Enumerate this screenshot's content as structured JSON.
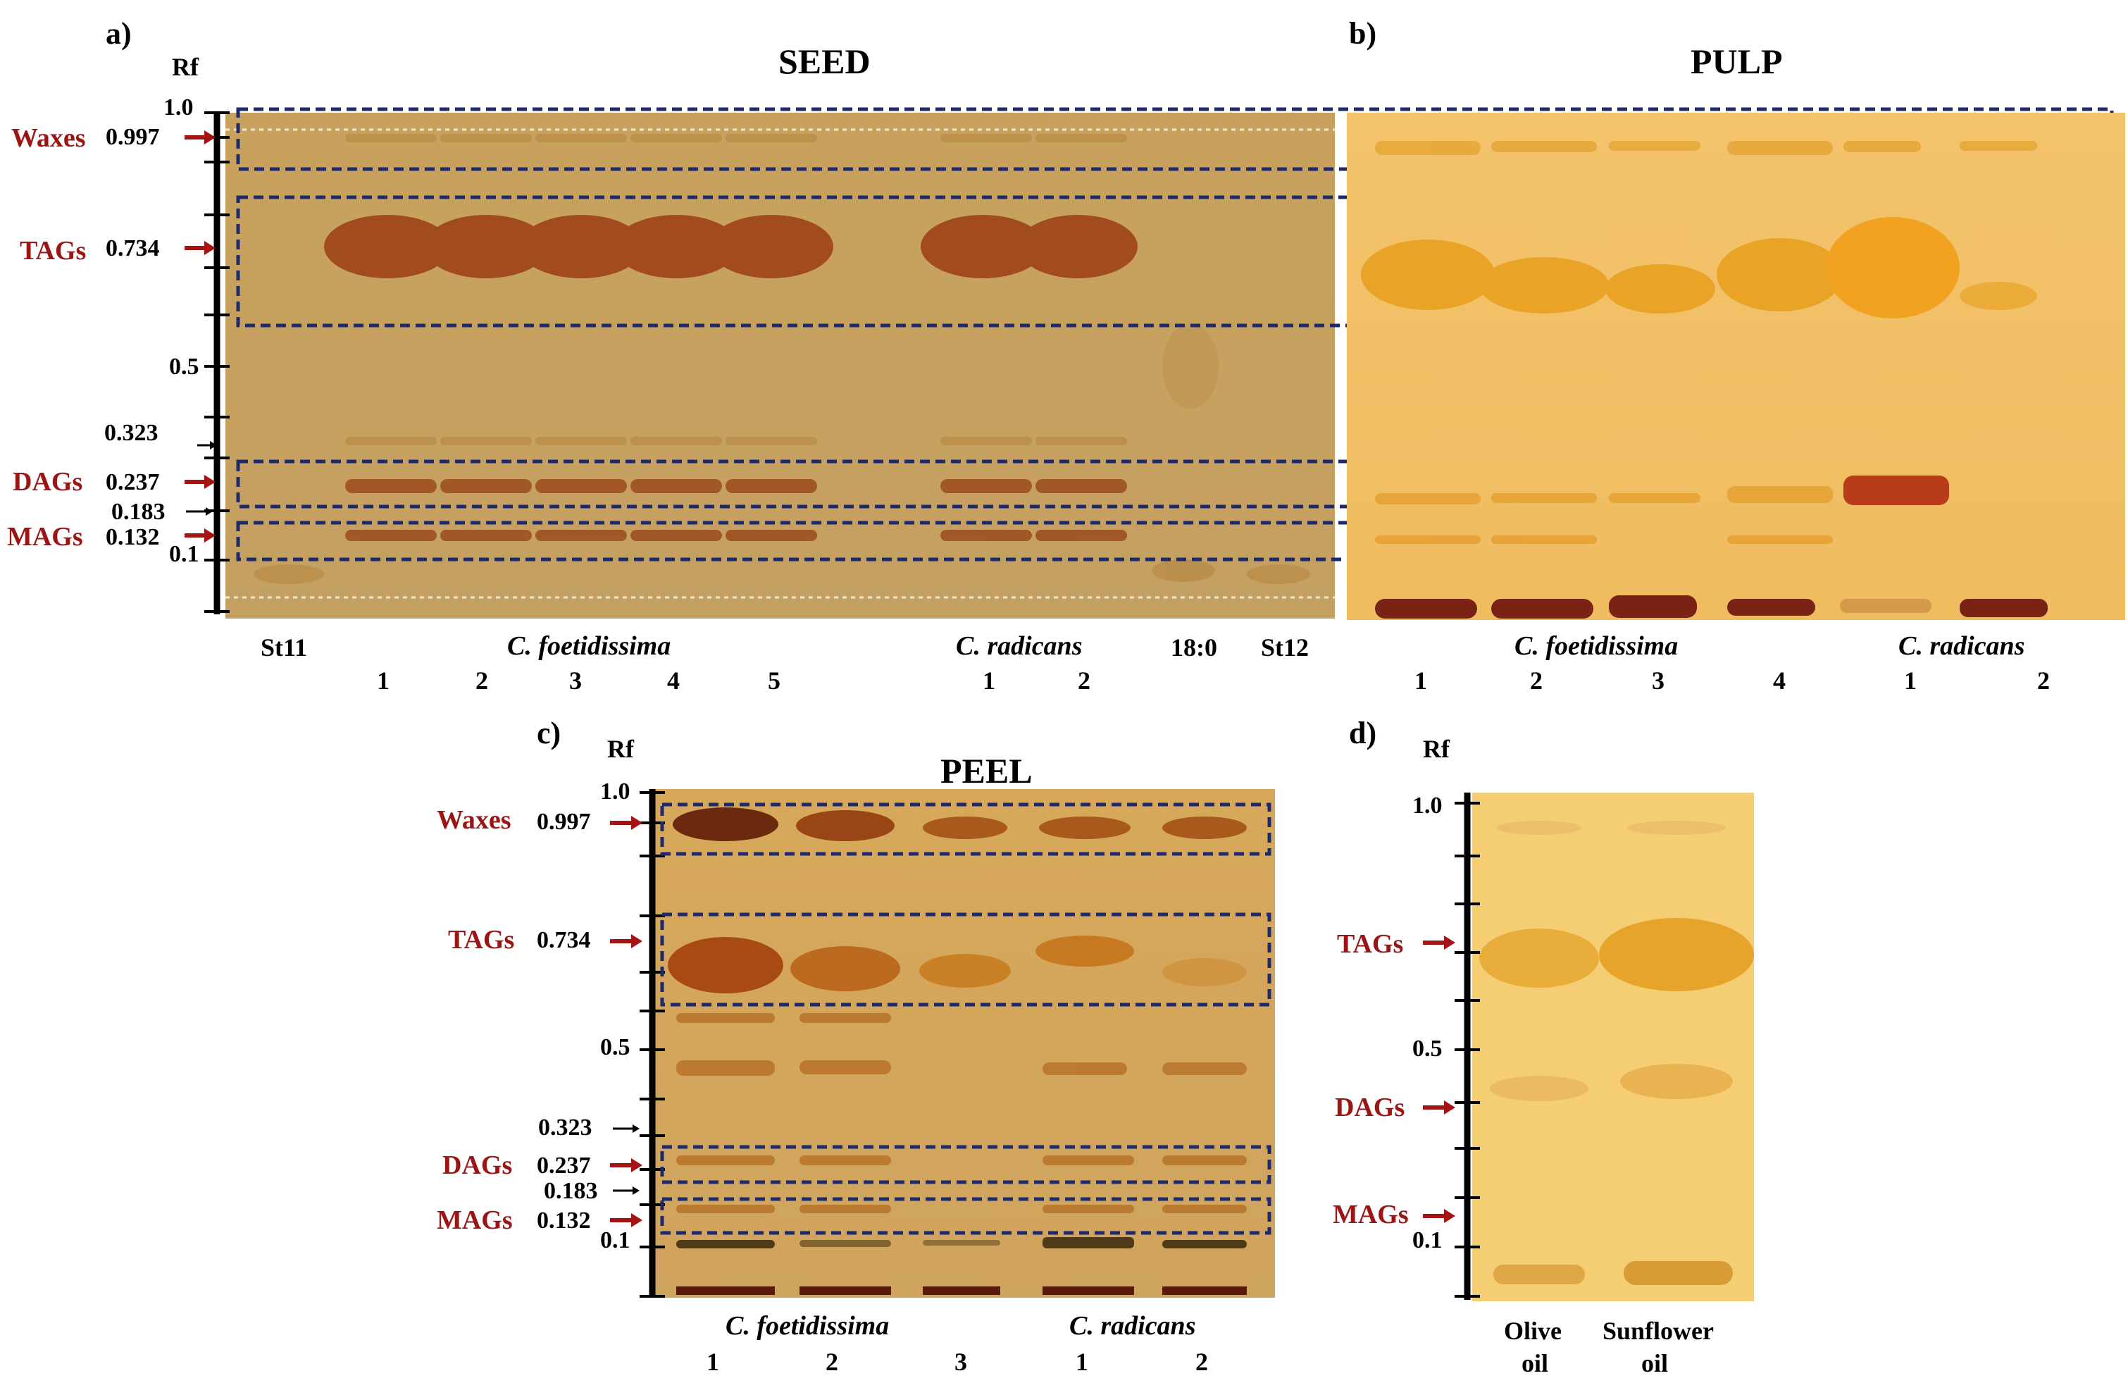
{
  "panels": {
    "a": {
      "label": "a)",
      "title": "SEED",
      "rf": "Rf",
      "ticks": [
        "1.0",
        "0.5",
        "0.323",
        "0.183",
        "0.1"
      ],
      "lipids": [
        {
          "name": "Waxes",
          "value": "0.997"
        },
        {
          "name": "TAGs",
          "value": "0.734"
        },
        {
          "name": "DAGs",
          "value": "0.237"
        },
        {
          "name": "MAGs",
          "value": "0.132"
        }
      ],
      "lanes": {
        "std1": "St11",
        "species1": "C. foetidissima",
        "species2": "C. radicans",
        "std_fa": "18:0",
        "std2": "St12",
        "numbers1": [
          "1",
          "2",
          "3",
          "4",
          "5"
        ],
        "numbers2": [
          "1",
          "2"
        ]
      }
    },
    "b": {
      "label": "b)",
      "title": "PULP",
      "lanes": {
        "species1": "C. foetidissima",
        "species2": "C. radicans",
        "numbers1": [
          "1",
          "2",
          "3",
          "4"
        ],
        "numbers2": [
          "1",
          "2"
        ]
      }
    },
    "c": {
      "label": "c)",
      "title": "PEEL",
      "rf": "Rf",
      "ticks": [
        "1.0",
        "0.5",
        "0.323",
        "0.183",
        "0.1"
      ],
      "lipids": [
        {
          "name": "Waxes",
          "value": "0.997"
        },
        {
          "name": "TAGs",
          "value": "0.734"
        },
        {
          "name": "DAGs",
          "value": "0.237"
        },
        {
          "name": "MAGs",
          "value": "0.132"
        }
      ],
      "lanes": {
        "species1": "C. foetidissima",
        "species2": "C. radicans",
        "numbers1": [
          "1",
          "2",
          "3"
        ],
        "numbers2": [
          "1",
          "2"
        ]
      }
    },
    "d": {
      "label": "d)",
      "rf": "Rf",
      "ticks": [
        "1.0",
        "0.5",
        "0.1"
      ],
      "lipids": [
        "TAGs",
        "DAGs",
        "MAGs"
      ],
      "lanes": {
        "oil1_line1": "Olive",
        "oil1_line2": "oil",
        "oil2_line1": "Sunflower",
        "oil2_line2": "oil"
      }
    }
  },
  "colors": {
    "plate_seed": "#c9a460",
    "plate_pulp": "#f2c46a",
    "plate_peel": "#d6a757",
    "plate_oil": "#f5ce74",
    "arrow_red": "#a51414",
    "box_blue": "#1d2a6e"
  }
}
